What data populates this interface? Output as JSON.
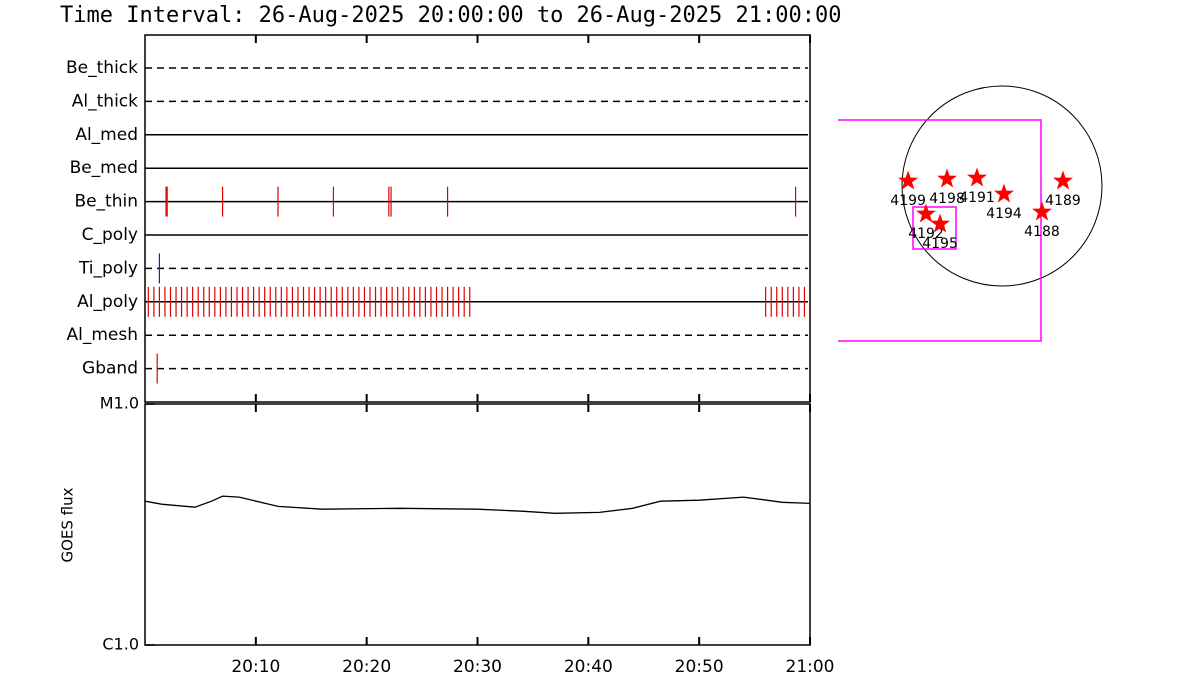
{
  "chart_data": [
    {
      "type": "timeline",
      "title": "Time Interval: 26-Aug-2025 20:00:00 to 26-Aug-2025 21:00:00",
      "xlim": [
        0,
        60
      ],
      "xticks": [
        {
          "value": 10,
          "label": "20:10"
        },
        {
          "value": 20,
          "label": "20:20"
        },
        {
          "value": 30,
          "label": "20:30"
        },
        {
          "value": 40,
          "label": "20:40"
        },
        {
          "value": 50,
          "label": "20:50"
        },
        {
          "value": 60,
          "label": "21:00"
        }
      ],
      "series": [
        {
          "name": "Be_thick",
          "line_style": "dashed",
          "color": "#e00000",
          "values": []
        },
        {
          "name": "Al_thick",
          "line_style": "dashed",
          "color": "#e00000",
          "values": []
        },
        {
          "name": "Al_med",
          "line_style": "solid",
          "color": "#e00000",
          "values": []
        },
        {
          "name": "Be_med",
          "line_style": "solid",
          "color": "#e00000",
          "values": []
        },
        {
          "name": "Be_thin",
          "line_style": "solid",
          "color": "#e00000",
          "values": [
            1.9,
            2.0,
            7.0,
            12.0,
            17.0,
            22.0,
            22.2,
            27.3,
            58.7
          ]
        },
        {
          "name": "C_poly",
          "line_style": "solid",
          "color": "#e00000",
          "values": []
        },
        {
          "name": "Ti_poly",
          "line_style": "dashed",
          "color": "#2020a0",
          "values": [
            1.3
          ]
        },
        {
          "name": "Al_poly",
          "line_style": "solid",
          "color": "#e00000",
          "values": [
            0.3,
            0.8,
            1.3,
            1.8,
            2.3,
            2.8,
            3.3,
            3.8,
            4.3,
            4.8,
            5.3,
            5.8,
            6.3,
            6.8,
            7.3,
            7.8,
            8.3,
            8.8,
            9.3,
            9.8,
            10.3,
            10.8,
            11.3,
            11.8,
            12.3,
            12.8,
            13.3,
            13.8,
            14.3,
            14.8,
            15.3,
            15.8,
            16.3,
            16.8,
            17.3,
            17.8,
            18.3,
            18.8,
            19.3,
            19.8,
            20.3,
            20.8,
            21.3,
            21.8,
            22.3,
            22.8,
            23.3,
            23.8,
            24.3,
            24.8,
            25.3,
            25.8,
            26.3,
            26.8,
            27.3,
            27.8,
            28.3,
            28.8,
            29.3,
            56.0,
            56.5,
            57.0,
            57.5,
            58.0,
            58.5,
            59.0,
            59.5
          ]
        },
        {
          "name": "Al_mesh",
          "line_style": "dashed",
          "color": "#e00000",
          "values": []
        },
        {
          "name": "Gband",
          "line_style": "dashed",
          "color": "#e00000",
          "values": [
            1.1
          ]
        }
      ]
    },
    {
      "type": "line",
      "ylabel": "GOES flux",
      "ylog": true,
      "ylim": [
        1e-06,
        1e-05
      ],
      "yticks": [
        {
          "value": 1e-06,
          "label": "C1.0"
        },
        {
          "value": 1e-05,
          "label": "M1.0"
        }
      ],
      "xlim": [
        0,
        60
      ],
      "xticks": [
        {
          "value": 10,
          "label": "20:10"
        },
        {
          "value": 20,
          "label": "20:20"
        },
        {
          "value": 30,
          "label": "20:30"
        },
        {
          "value": 40,
          "label": "20:40"
        },
        {
          "value": 50,
          "label": "20:50"
        },
        {
          "value": 60,
          "label": "21:00"
        }
      ],
      "color": "#000000",
      "x": [
        0,
        1.5,
        4.5,
        6,
        7,
        8.5,
        12,
        16,
        23,
        30,
        34,
        37,
        41,
        44,
        46.5,
        50,
        54,
        57.5,
        60
      ],
      "values": [
        3.95e-06,
        3.84e-06,
        3.73e-06,
        3.95e-06,
        4.15e-06,
        4.11e-06,
        3.76e-06,
        3.66e-06,
        3.69e-06,
        3.66e-06,
        3.59e-06,
        3.52e-06,
        3.55e-06,
        3.69e-06,
        3.95e-06,
        3.99e-06,
        4.11e-06,
        3.91e-06,
        3.87e-06
      ]
    },
    {
      "type": "scatter",
      "xlim": [
        -1100,
        1100
      ],
      "ylim": [
        -1100,
        1100
      ],
      "color": "#ff0000",
      "labels": [
        "4199",
        "4198",
        "4191",
        "4194",
        "4189",
        "4188",
        "4192",
        "4195"
      ],
      "x": [
        -902,
        -528,
        -240,
        19,
        586,
        384,
        -730,
        -595
      ],
      "values": [
        48,
        67,
        77,
        -77,
        48,
        -250,
        -269,
        -365
      ]
    }
  ]
}
